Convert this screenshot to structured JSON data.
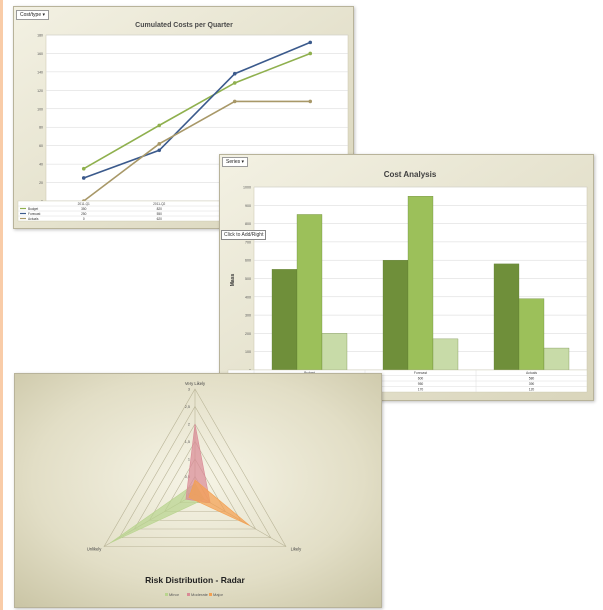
{
  "line_panel": {
    "dropdown_label": "Cost/type ▾"
  },
  "bar_panel": {
    "dropdown_label": "Series ▾",
    "tooltip": "Click to Add/Right"
  },
  "chart_data": [
    {
      "type": "line",
      "title": "Cumulated Costs per Quarter",
      "xlabel": "",
      "ylabel": "",
      "categories": [
        "2011-Q1",
        "2011-Q2",
        "",
        ""
      ],
      "ylim": [
        0,
        180
      ],
      "yticks": [
        0,
        20,
        40,
        60,
        80,
        100,
        120,
        140,
        160,
        180
      ],
      "grid": true,
      "colors": [
        "#8fb04e",
        "#3b5a8c",
        "#a89868"
      ],
      "series": [
        {
          "name": "Budget",
          "values": [
            35,
            82,
            128,
            160
          ]
        },
        {
          "name": "Forecast",
          "values": [
            25,
            55,
            138,
            172
          ]
        },
        {
          "name": "Actuals",
          "values": [
            0,
            62,
            108,
            108
          ]
        }
      ],
      "table": [
        {
          "name": "Budget",
          "cells": [
            "350",
            "820",
            "",
            ""
          ]
        },
        {
          "name": "Forecast",
          "cells": [
            "250",
            "550",
            "",
            ""
          ]
        },
        {
          "name": "Actuals",
          "cells": [
            "0",
            "620",
            "",
            ""
          ]
        }
      ]
    },
    {
      "type": "bar",
      "title": "Cost Analysis",
      "ylabel": "Mass",
      "categories": [
        "Budget",
        "Forecast",
        "Actuals"
      ],
      "ylim": [
        0,
        1000
      ],
      "yticks": [
        0,
        100,
        200,
        300,
        400,
        500,
        600,
        700,
        800,
        900,
        1000
      ],
      "grid": true,
      "colors": [
        "#6f8f3a",
        "#9cc05a",
        "#c8dba8"
      ],
      "series": [
        {
          "name": "Labor",
          "values": [
            550,
            600,
            580
          ]
        },
        {
          "name": "Execution",
          "values": [
            850,
            950,
            390
          ]
        },
        {
          "name": "Expenses",
          "values": [
            200,
            170,
            120
          ]
        }
      ],
      "table": [
        {
          "name": "Labor",
          "cells": [
            "550",
            "600",
            "580"
          ]
        },
        {
          "name": "Execution",
          "cells": [
            "850",
            "950",
            "390"
          ]
        },
        {
          "name": "Expenses",
          "cells": [
            "200",
            "170",
            "120"
          ]
        }
      ]
    },
    {
      "type": "radar",
      "title": "Risk Distribution - Radar",
      "axes": [
        "Very Likely",
        "Likely",
        "Unlikely"
      ],
      "rlim": [
        0,
        3
      ],
      "rticks": [
        0,
        0.5,
        1,
        1.5,
        2,
        2.5,
        3
      ],
      "rtick_labels": [
        "0",
        "0,5",
        "1",
        "1,5",
        "2",
        "2,5",
        "3"
      ],
      "legend": "bottom",
      "series": [
        {
          "name": "Minor",
          "values": [
            0.3,
            0.3,
            2.8
          ],
          "color": "#b9d48f"
        },
        {
          "name": "Moderate",
          "values": [
            2.0,
            0.5,
            0.3
          ],
          "color": "#d98a96"
        },
        {
          "name": "Major",
          "values": [
            0.4,
            1.8,
            0.2
          ],
          "color": "#f4a050"
        }
      ]
    }
  ]
}
